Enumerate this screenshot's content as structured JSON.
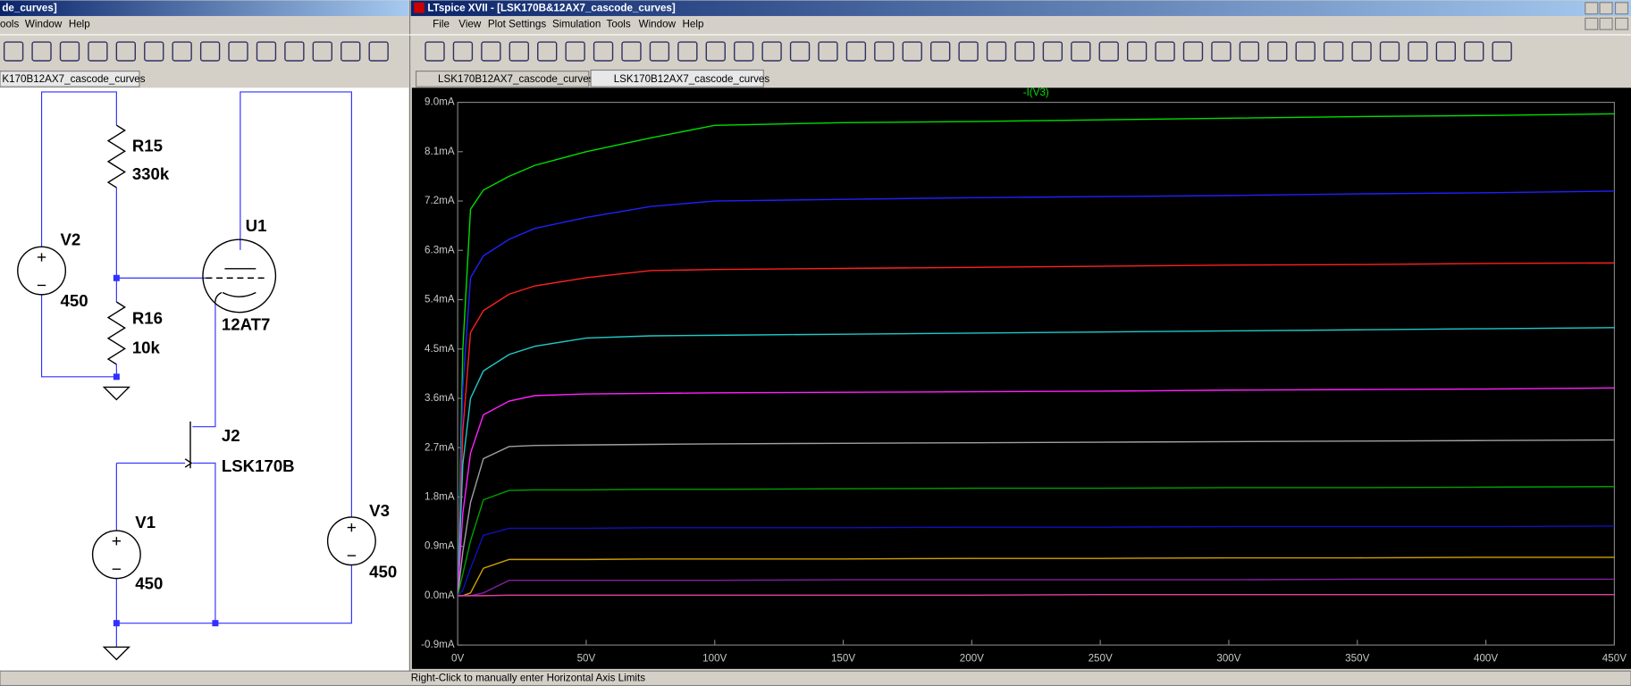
{
  "left_window": {
    "title": "de_curves]",
    "menu": [
      "ools",
      "Window",
      "Help"
    ],
    "tab": "K170B12AX7_cascode_curves"
  },
  "right_window": {
    "title": "LTspice XVII - [LSK170B&12AX7_cascode_curves]",
    "menu": [
      "File",
      "View",
      "Plot Settings",
      "Simulation",
      "Tools",
      "Window",
      "Help"
    ],
    "tabs": [
      "LSK170B12AX7_cascode_curves",
      "LSK170B12AX7_cascode_curves"
    ]
  },
  "schematic": {
    "labels": [
      "R15",
      "330k",
      "V2",
      "450",
      "U1",
      "12AT7",
      "R16",
      "10k",
      "J2",
      "LSK170B",
      "V1",
      "450",
      "V3",
      "450"
    ]
  },
  "status": "Right-Click to manually enter Horizontal Axis Limits",
  "chart_data": {
    "type": "line",
    "title": "-I(V3)",
    "title_color": "#00e000",
    "x": [
      0,
      2,
      5,
      10,
      20,
      30,
      50,
      75,
      100,
      150,
      200,
      250,
      300,
      350,
      400,
      450
    ],
    "series": [
      {
        "color": "#00dd00",
        "values": [
          0,
          4.5,
          7.05,
          7.4,
          7.65,
          7.85,
          8.1,
          8.35,
          8.58,
          8.63,
          8.65,
          8.68,
          8.71,
          8.74,
          8.76,
          8.79
        ]
      },
      {
        "color": "#2020ff",
        "values": [
          0,
          3.8,
          5.8,
          6.2,
          6.5,
          6.7,
          6.9,
          7.1,
          7.2,
          7.23,
          7.26,
          7.28,
          7.3,
          7.33,
          7.35,
          7.38
        ]
      },
      {
        "color": "#ff2020",
        "values": [
          0,
          3,
          4.8,
          5.2,
          5.5,
          5.65,
          5.8,
          5.93,
          5.95,
          5.97,
          5.99,
          6.01,
          6.03,
          6.04,
          6.06,
          6.07
        ]
      },
      {
        "color": "#20c8c8",
        "values": [
          0,
          2.4,
          3.6,
          4.1,
          4.4,
          4.55,
          4.7,
          4.74,
          4.75,
          4.77,
          4.79,
          4.81,
          4.83,
          4.85,
          4.87,
          4.89
        ]
      },
      {
        "color": "#ff20ff",
        "values": [
          0,
          1.5,
          2.6,
          3.3,
          3.55,
          3.65,
          3.68,
          3.69,
          3.7,
          3.71,
          3.72,
          3.73,
          3.75,
          3.76,
          3.77,
          3.79
        ]
      },
      {
        "color": "#a0a0a0",
        "values": [
          0,
          0.8,
          1.7,
          2.5,
          2.72,
          2.74,
          2.75,
          2.76,
          2.77,
          2.78,
          2.79,
          2.8,
          2.81,
          2.82,
          2.83,
          2.84
        ]
      },
      {
        "color": "#00a000",
        "values": [
          0,
          0.4,
          1,
          1.75,
          1.92,
          1.93,
          1.93,
          1.94,
          1.94,
          1.95,
          1.96,
          1.96,
          1.97,
          1.97,
          1.98,
          1.99
        ]
      },
      {
        "color": "#1010c0",
        "values": [
          0,
          0.1,
          0.5,
          1.1,
          1.23,
          1.23,
          1.23,
          1.24,
          1.24,
          1.24,
          1.25,
          1.25,
          1.26,
          1.26,
          1.26,
          1.27
        ]
      },
      {
        "color": "#d0a000",
        "values": [
          0,
          0,
          0.05,
          0.5,
          0.66,
          0.66,
          0.66,
          0.67,
          0.67,
          0.67,
          0.68,
          0.68,
          0.69,
          0.69,
          0.7,
          0.7
        ]
      },
      {
        "color": "#8020a0",
        "values": [
          0,
          0,
          0,
          0.05,
          0.28,
          0.28,
          0.28,
          0.28,
          0.28,
          0.29,
          0.29,
          0.29,
          0.29,
          0.3,
          0.3,
          0.3
        ]
      },
      {
        "color": "#e040a0",
        "values": [
          0,
          0,
          0,
          0,
          0.01,
          0.01,
          0.01,
          0.01,
          0.01,
          0.01,
          0.01,
          0.02,
          0.02,
          0.02,
          0.02,
          0.02
        ]
      }
    ],
    "xlim": [
      0,
      450
    ],
    "ylim": [
      -0.9,
      9
    ],
    "xticks": [
      {
        "value": 0,
        "label": "0V"
      },
      {
        "value": 50,
        "label": "50V"
      },
      {
        "value": 100,
        "label": "100V"
      },
      {
        "value": 150,
        "label": "150V"
      },
      {
        "value": 200,
        "label": "200V"
      },
      {
        "value": 250,
        "label": "250V"
      },
      {
        "value": 300,
        "label": "300V"
      },
      {
        "value": 350,
        "label": "350V"
      },
      {
        "value": 400,
        "label": "400V"
      },
      {
        "value": 450,
        "label": "450V"
      }
    ],
    "yticks": [
      {
        "value": -0.9,
        "label": "-0.9mA"
      },
      {
        "value": 0,
        "label": "0.0mA"
      },
      {
        "value": 0.9,
        "label": "0.9mA"
      },
      {
        "value": 1.8,
        "label": "1.8mA"
      },
      {
        "value": 2.7,
        "label": "2.7mA"
      },
      {
        "value": 3.6,
        "label": "3.6mA"
      },
      {
        "value": 4.5,
        "label": "4.5mA"
      },
      {
        "value": 5.4,
        "label": "5.4mA"
      },
      {
        "value": 6.3,
        "label": "6.3mA"
      },
      {
        "value": 7.2,
        "label": "7.2mA"
      },
      {
        "value": 8.1,
        "label": "8.1mA"
      },
      {
        "value": 9,
        "label": "9.0mA"
      }
    ],
    "grid": false
  }
}
